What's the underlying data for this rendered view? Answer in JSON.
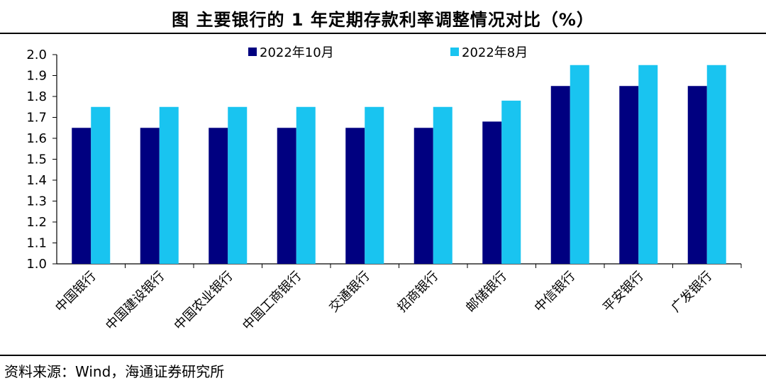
{
  "header": {
    "title": "图  主要银行的 1 年定期存款利率调整情况对比（%）"
  },
  "footer": {
    "source": "资料来源：Wind，海通证券研究所"
  },
  "chart_data": {
    "type": "bar",
    "categories": [
      "中国银行",
      "中国建设银行",
      "中国农业银行",
      "中国工商银行",
      "交通银行",
      "招商银行",
      "邮储银行",
      "中信银行",
      "平安银行",
      "广发银行"
    ],
    "series": [
      {
        "name": "2022年10月",
        "color": "#000080",
        "values": [
          1.65,
          1.65,
          1.65,
          1.65,
          1.65,
          1.65,
          1.68,
          1.85,
          1.85,
          1.85
        ]
      },
      {
        "name": "2022年8月",
        "color": "#19C4F0",
        "values": [
          1.75,
          1.75,
          1.75,
          1.75,
          1.75,
          1.75,
          1.78,
          1.95,
          1.95,
          1.95
        ]
      }
    ],
    "ylim": [
      1.0,
      2.0
    ],
    "yticks": [
      "1.0",
      "1.1",
      "1.2",
      "1.3",
      "1.4",
      "1.5",
      "1.6",
      "1.7",
      "1.8",
      "1.9",
      "2.0"
    ],
    "grid": false,
    "legend_position": "top"
  }
}
